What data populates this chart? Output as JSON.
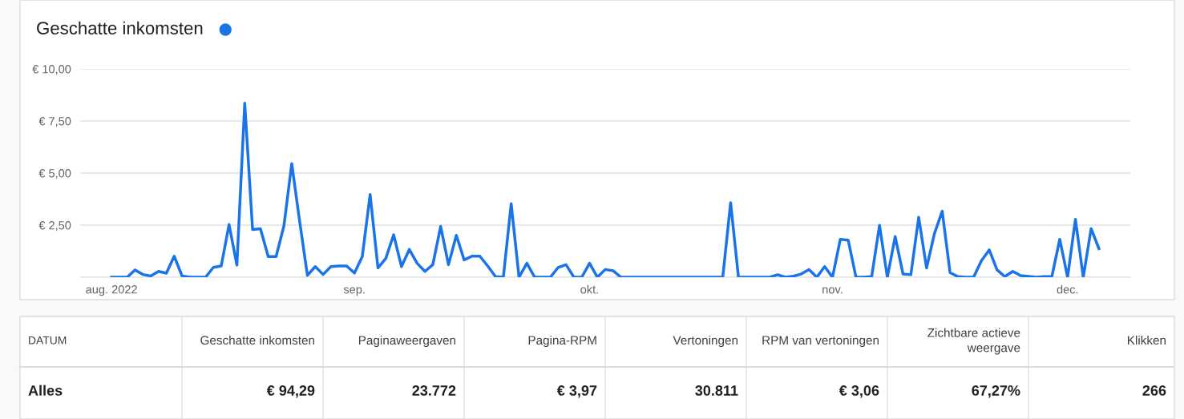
{
  "chart_data": [
    {
      "type": "line",
      "title": "Geschatte inkomsten",
      "x": [
        "2022-08-01",
        "2022-08-02",
        "2022-08-03",
        "2022-08-04",
        "2022-08-05",
        "2022-08-06",
        "2022-08-07",
        "2022-08-08",
        "2022-08-09",
        "2022-08-10",
        "2022-08-11",
        "2022-08-12",
        "2022-08-13",
        "2022-08-14",
        "2022-08-15",
        "2022-08-16",
        "2022-08-17",
        "2022-08-18",
        "2022-08-19",
        "2022-08-20",
        "2022-08-21",
        "2022-08-22",
        "2022-08-23",
        "2022-08-24",
        "2022-08-25",
        "2022-08-26",
        "2022-08-27",
        "2022-08-28",
        "2022-08-29",
        "2022-08-30",
        "2022-08-31",
        "2022-09-01",
        "2022-09-02",
        "2022-09-03",
        "2022-09-04",
        "2022-09-05",
        "2022-09-06",
        "2022-09-07",
        "2022-09-08",
        "2022-09-09",
        "2022-09-10",
        "2022-09-11",
        "2022-09-12",
        "2022-09-13",
        "2022-09-14",
        "2022-09-15",
        "2022-09-16",
        "2022-09-17",
        "2022-09-18",
        "2022-09-19",
        "2022-09-20",
        "2022-09-21",
        "2022-09-22",
        "2022-09-23",
        "2022-09-24",
        "2022-09-25",
        "2022-09-26",
        "2022-09-27",
        "2022-09-28",
        "2022-09-29",
        "2022-09-30",
        "2022-10-01",
        "2022-10-02",
        "2022-10-03",
        "2022-10-04",
        "2022-10-05",
        "2022-10-06",
        "2022-10-07",
        "2022-10-08",
        "2022-10-09",
        "2022-10-10",
        "2022-10-11",
        "2022-10-12",
        "2022-10-13",
        "2022-10-14",
        "2022-10-15",
        "2022-10-16",
        "2022-10-17",
        "2022-10-18",
        "2022-10-19",
        "2022-10-20",
        "2022-10-21",
        "2022-10-22",
        "2022-10-23",
        "2022-10-24",
        "2022-10-25",
        "2022-10-26",
        "2022-10-27",
        "2022-10-28",
        "2022-10-29",
        "2022-10-30",
        "2022-10-31",
        "2022-11-01",
        "2022-11-02",
        "2022-11-03",
        "2022-11-04",
        "2022-11-05",
        "2022-11-06",
        "2022-11-07",
        "2022-11-08",
        "2022-11-09",
        "2022-11-10",
        "2022-11-11",
        "2022-11-12",
        "2022-11-13",
        "2022-11-14",
        "2022-11-15",
        "2022-11-16",
        "2022-11-17",
        "2022-11-18",
        "2022-11-19",
        "2022-11-20",
        "2022-11-21",
        "2022-11-22",
        "2022-11-23",
        "2022-11-24",
        "2022-11-25",
        "2022-11-26",
        "2022-11-27",
        "2022-11-28",
        "2022-11-29",
        "2022-11-30",
        "2022-12-01",
        "2022-12-02",
        "2022-12-03",
        "2022-12-04",
        "2022-12-05"
      ],
      "series": [
        {
          "color": "#1a73e8",
          "values": [
            0,
            0,
            0,
            0.35,
            0.13,
            0.06,
            0.28,
            0.19,
            1.01,
            0.06,
            0,
            0,
            0,
            0.47,
            0.54,
            2.53,
            0.58,
            8.36,
            2.29,
            2.33,
            0.99,
            0.99,
            2.46,
            5.45,
            2.7,
            0.09,
            0.51,
            0.13,
            0.51,
            0.54,
            0.54,
            0.2,
            0.99,
            3.97,
            0.45,
            0.9,
            2.04,
            0.51,
            1.33,
            0.67,
            0.28,
            0.6,
            2.44,
            0.6,
            2.01,
            0.83,
            1.01,
            1.01,
            0.54,
            0.03,
            0,
            3.53,
            0,
            0.67,
            0,
            0,
            0,
            0.47,
            0.6,
            0,
            0,
            0.67,
            0,
            0.37,
            0.31,
            0,
            0,
            0,
            0,
            0,
            0,
            0,
            0,
            0,
            0,
            0,
            0,
            0,
            0,
            3.58,
            0,
            0,
            0,
            0,
            0,
            0.12,
            0,
            0.05,
            0.15,
            0.37,
            0,
            0.51,
            0,
            1.82,
            1.78,
            0,
            0,
            0.03,
            2.49,
            0,
            1.95,
            0.15,
            0.12,
            2.88,
            0.44,
            2.08,
            3.17,
            0.22,
            0.03,
            0,
            0,
            0.79,
            1.31,
            0.35,
            0.03,
            0.28,
            0.08,
            0.04,
            0,
            0.03,
            0.04,
            1.82,
            0,
            2.78,
            0,
            2.33,
            1.37
          ]
        }
      ],
      "xlim": [
        "2022-07-28",
        "2022-12-09"
      ],
      "xticks": [
        {
          "value": "2022-08-01",
          "label": "aug. 2022"
        },
        {
          "value": "2022-09-01",
          "label": "sep."
        },
        {
          "value": "2022-10-01",
          "label": "okt."
        },
        {
          "value": "2022-11-01",
          "label": "nov."
        },
        {
          "value": "2022-12-01",
          "label": "dec."
        }
      ],
      "ylim": [
        0,
        10
      ],
      "yticks": [
        {
          "value": 0,
          "label": null
        },
        {
          "value": 2.5,
          "label": "€ 2,50"
        },
        {
          "value": 5,
          "label": "€ 5,00"
        },
        {
          "value": 7.5,
          "label": "€ 7,50"
        },
        {
          "value": 10,
          "label": "€ 10,00"
        }
      ],
      "grid": "y",
      "marker": "none",
      "line_style": "solid"
    },
    {
      "type": "other",
      "annotations": [
        "DATUM",
        "Geschatte inkomsten",
        "Paginaweergaven",
        "Pagina-RPM",
        "Vertoningen",
        "RPM van vertoningen",
        "Zichtbare actieve\nweergave",
        "Klikken",
        "Alles",
        "€ 94,29",
        "23.772",
        "€ 3,97",
        "30.811",
        "€ 3,06",
        "67,27%",
        "266"
      ]
    }
  ]
}
